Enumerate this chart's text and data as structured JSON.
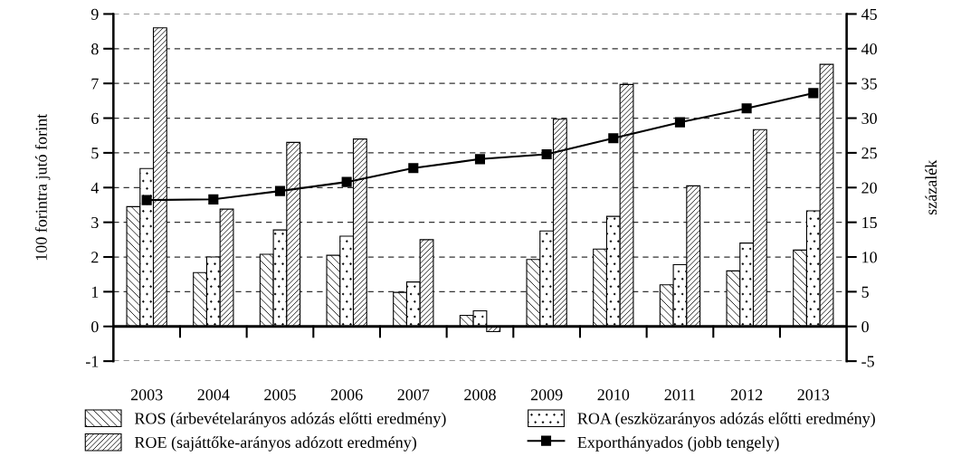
{
  "chart_data": {
    "type": "bar",
    "categories": [
      "2003",
      "2004",
      "2005",
      "2006",
      "2007",
      "2008",
      "2009",
      "2010",
      "2011",
      "2012",
      "2013"
    ],
    "ylabel": "100 forintra jutó forint",
    "y2label": "százalék",
    "series": [
      {
        "name": "ROS (árbevételarányos adózás előtti eredmény)",
        "color": "#000000",
        "values": [
          3.45,
          1.55,
          2.08,
          2.05,
          0.98,
          0.32,
          1.93,
          2.23,
          1.2,
          1.6,
          2.2
        ]
      },
      {
        "name": "ROA (eszközarányos adózás előtti eredmény)",
        "color": "#000000",
        "values": [
          4.55,
          2.0,
          2.78,
          2.6,
          1.28,
          0.45,
          2.75,
          3.17,
          1.78,
          2.4,
          3.33
        ]
      },
      {
        "name": "ROE (sajáttőke-arányos adózott eredmény)",
        "color": "#000000",
        "values": [
          8.6,
          3.38,
          5.3,
          5.4,
          2.5,
          -0.15,
          5.97,
          6.97,
          4.05,
          5.67,
          7.55
        ]
      },
      {
        "name": "Exporthányados (jobb tengely)",
        "type": "line",
        "axis": "y2",
        "color": "#000000",
        "marker": "square",
        "values": [
          18.2,
          18.3,
          19.5,
          20.8,
          22.8,
          24.1,
          24.8,
          27.1,
          29.4,
          31.4,
          33.6
        ]
      }
    ],
    "ylim": [
      -1,
      9
    ],
    "yticks": [
      -1,
      0,
      1,
      2,
      3,
      4,
      5,
      6,
      7,
      8,
      9
    ],
    "y2lim": [
      -5,
      45
    ],
    "y2ticks": [
      -5,
      0,
      5,
      10,
      15,
      20,
      25,
      30,
      35,
      40,
      45
    ],
    "grid": "y",
    "legend": "bottom"
  }
}
